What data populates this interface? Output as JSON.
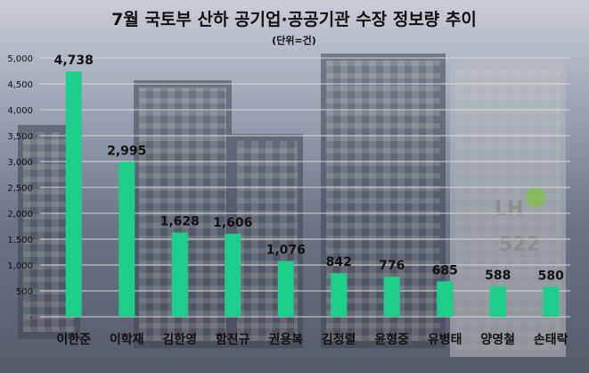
{
  "chart_data": {
    "type": "bar",
    "title": "7월 국토부 산하 공기업·공공기관 수장 정보량 추이",
    "subtitle": "(단위=건)",
    "categories": [
      "이한준",
      "이학재",
      "김한영",
      "함진규",
      "권용복",
      "김정렬",
      "윤형중",
      "유병태",
      "양영철",
      "손태락"
    ],
    "values": [
      4738,
      2995,
      1628,
      1606,
      1076,
      842,
      776,
      685,
      588,
      580
    ],
    "value_labels": [
      "4,738",
      "2,995",
      "1,628",
      "1,606",
      "1,076",
      "842",
      "776",
      "685",
      "588",
      "580"
    ],
    "y_ticks": [
      "-",
      "500",
      "1,000",
      "1,500",
      "2,000",
      "2,500",
      "3,000",
      "3,500",
      "4,000",
      "4,500",
      "5,000"
    ],
    "ylim": [
      0,
      5000
    ],
    "grid": true,
    "legend": "none",
    "bar_color": "#1ecf8b"
  }
}
